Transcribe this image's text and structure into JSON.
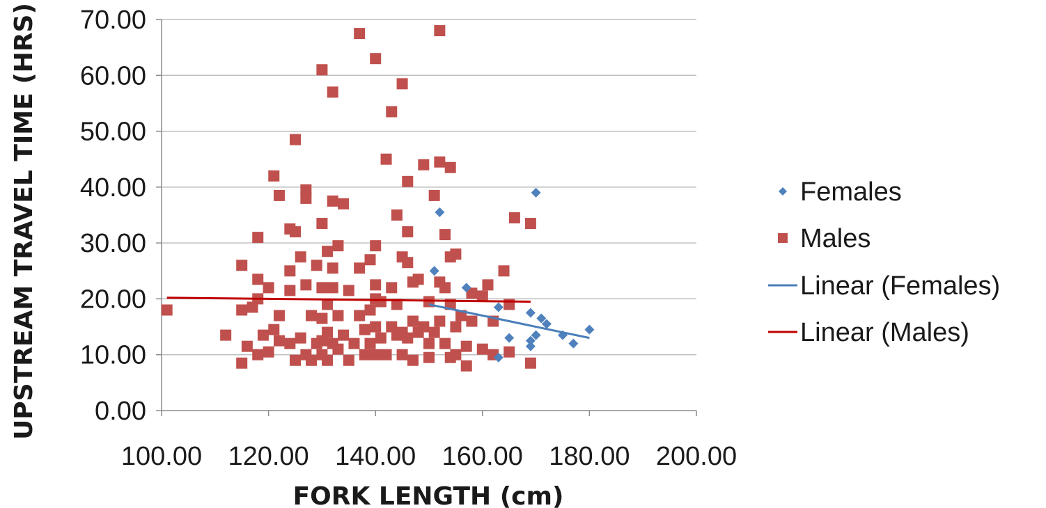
{
  "chart_data": {
    "type": "scatter",
    "xlabel": "FORK LENGTH (cm)",
    "ylabel": "UPSTREAM TRAVEL TIME (HRS)",
    "xlim": [
      100,
      200
    ],
    "ylim": [
      0,
      70
    ],
    "x_ticks": [
      "100.00",
      "120.00",
      "140.00",
      "160.00",
      "180.00",
      "200.00"
    ],
    "y_ticks": [
      "0.00",
      "10.00",
      "20.00",
      "30.00",
      "40.00",
      "50.00",
      "60.00",
      "70.00"
    ],
    "x_tick_values": [
      100,
      120,
      140,
      160,
      180,
      200
    ],
    "y_tick_values": [
      0,
      10,
      20,
      30,
      40,
      50,
      60,
      70
    ],
    "grid": "horizontal",
    "legend_position": "right",
    "series": [
      {
        "name": "Females",
        "marker": "diamond",
        "color": "#4f81bd",
        "points": [
          [
            151,
            25
          ],
          [
            152,
            35.5
          ],
          [
            157,
            22
          ],
          [
            163,
            9.5
          ],
          [
            163,
            18.5
          ],
          [
            165,
            13
          ],
          [
            169,
            11.5
          ],
          [
            169,
            12.5
          ],
          [
            169,
            17.5
          ],
          [
            170,
            39
          ],
          [
            170,
            13.5
          ],
          [
            171,
            16.5
          ],
          [
            172,
            15.5
          ],
          [
            175,
            13.5
          ],
          [
            177,
            12
          ],
          [
            180,
            14.5
          ]
        ]
      },
      {
        "name": "Males",
        "marker": "square",
        "color": "#c0504d",
        "points": [
          [
            101,
            18
          ],
          [
            112,
            13.5
          ],
          [
            115,
            26
          ],
          [
            115,
            18
          ],
          [
            115,
            8.5
          ],
          [
            116,
            11.5
          ],
          [
            117,
            18.5
          ],
          [
            118,
            31
          ],
          [
            118,
            23.5
          ],
          [
            118,
            20
          ],
          [
            118,
            10
          ],
          [
            119,
            13.5
          ],
          [
            120,
            22
          ],
          [
            120,
            10.5
          ],
          [
            121,
            42
          ],
          [
            121,
            14.5
          ],
          [
            122,
            38.5
          ],
          [
            122,
            17
          ],
          [
            122,
            12.5
          ],
          [
            124,
            32.5
          ],
          [
            124,
            25
          ],
          [
            124,
            21.5
          ],
          [
            124,
            12
          ],
          [
            125,
            48.5
          ],
          [
            125,
            32
          ],
          [
            125,
            9
          ],
          [
            126,
            27.5
          ],
          [
            126,
            13
          ],
          [
            127,
            39.5
          ],
          [
            127,
            38
          ],
          [
            127,
            22.5
          ],
          [
            127,
            10
          ],
          [
            128,
            17
          ],
          [
            128,
            9
          ],
          [
            129,
            26
          ],
          [
            129,
            12
          ],
          [
            130,
            61
          ],
          [
            130,
            33.5
          ],
          [
            130,
            22
          ],
          [
            130,
            16.5
          ],
          [
            130,
            12.5
          ],
          [
            130,
            10
          ],
          [
            131,
            28.5
          ],
          [
            131,
            19
          ],
          [
            131,
            14
          ],
          [
            131,
            9
          ],
          [
            132,
            57
          ],
          [
            132,
            37.5
          ],
          [
            132,
            25.5
          ],
          [
            132,
            22
          ],
          [
            132,
            12
          ],
          [
            133,
            29.5
          ],
          [
            133,
            17
          ],
          [
            133,
            11
          ],
          [
            134,
            37
          ],
          [
            134,
            13.5
          ],
          [
            135,
            21.5
          ],
          [
            135,
            9
          ],
          [
            136,
            12
          ],
          [
            137,
            67.5
          ],
          [
            137,
            25.5
          ],
          [
            137,
            17
          ],
          [
            138,
            14.5
          ],
          [
            138,
            10
          ],
          [
            139,
            27
          ],
          [
            139,
            18
          ],
          [
            139,
            12
          ],
          [
            140,
            63
          ],
          [
            140,
            29.5
          ],
          [
            140,
            22.5
          ],
          [
            140,
            20
          ],
          [
            140,
            15
          ],
          [
            140,
            10
          ],
          [
            141,
            19.5
          ],
          [
            141,
            13
          ],
          [
            142,
            45
          ],
          [
            142,
            10
          ],
          [
            143,
            53.5
          ],
          [
            143,
            15
          ],
          [
            143,
            22
          ],
          [
            144,
            35
          ],
          [
            144,
            19
          ],
          [
            144,
            13.5
          ],
          [
            145,
            58.5
          ],
          [
            145,
            27.5
          ],
          [
            145,
            14
          ],
          [
            145,
            10
          ],
          [
            146,
            41
          ],
          [
            146,
            32
          ],
          [
            146,
            26.5
          ],
          [
            146,
            13
          ],
          [
            147,
            23
          ],
          [
            147,
            16
          ],
          [
            147,
            9
          ],
          [
            148,
            23.5
          ],
          [
            148,
            14
          ],
          [
            149,
            44
          ],
          [
            149,
            15
          ],
          [
            150,
            19.5
          ],
          [
            150,
            12
          ],
          [
            150,
            9.5
          ],
          [
            151,
            38.5
          ],
          [
            151,
            14
          ],
          [
            152,
            68
          ],
          [
            152,
            44.5
          ],
          [
            152,
            23
          ],
          [
            152,
            16
          ],
          [
            153,
            31.5
          ],
          [
            153,
            22
          ],
          [
            153,
            12
          ],
          [
            154,
            43.5
          ],
          [
            154,
            27.5
          ],
          [
            154,
            19
          ],
          [
            154,
            9.5
          ],
          [
            155,
            28
          ],
          [
            155,
            15
          ],
          [
            155,
            10
          ],
          [
            156,
            17
          ],
          [
            157,
            11.5
          ],
          [
            157,
            8
          ],
          [
            158,
            21
          ],
          [
            158,
            16
          ],
          [
            160,
            11
          ],
          [
            160,
            20.5
          ],
          [
            161,
            22.5
          ],
          [
            162,
            10
          ],
          [
            162,
            16
          ],
          [
            164,
            25
          ],
          [
            165,
            19
          ],
          [
            165,
            10.5
          ],
          [
            166,
            34.5
          ],
          [
            169,
            33.5
          ],
          [
            169,
            8.5
          ]
        ]
      },
      {
        "name": "Linear (Females)",
        "type": "line",
        "color": "#4a7ebb",
        "points": [
          [
            150,
            19
          ],
          [
            180,
            13
          ]
        ]
      },
      {
        "name": "Linear (Males)",
        "type": "line",
        "color": "#c00000",
        "points": [
          [
            101,
            20.2
          ],
          [
            169,
            19.5
          ]
        ]
      }
    ]
  }
}
